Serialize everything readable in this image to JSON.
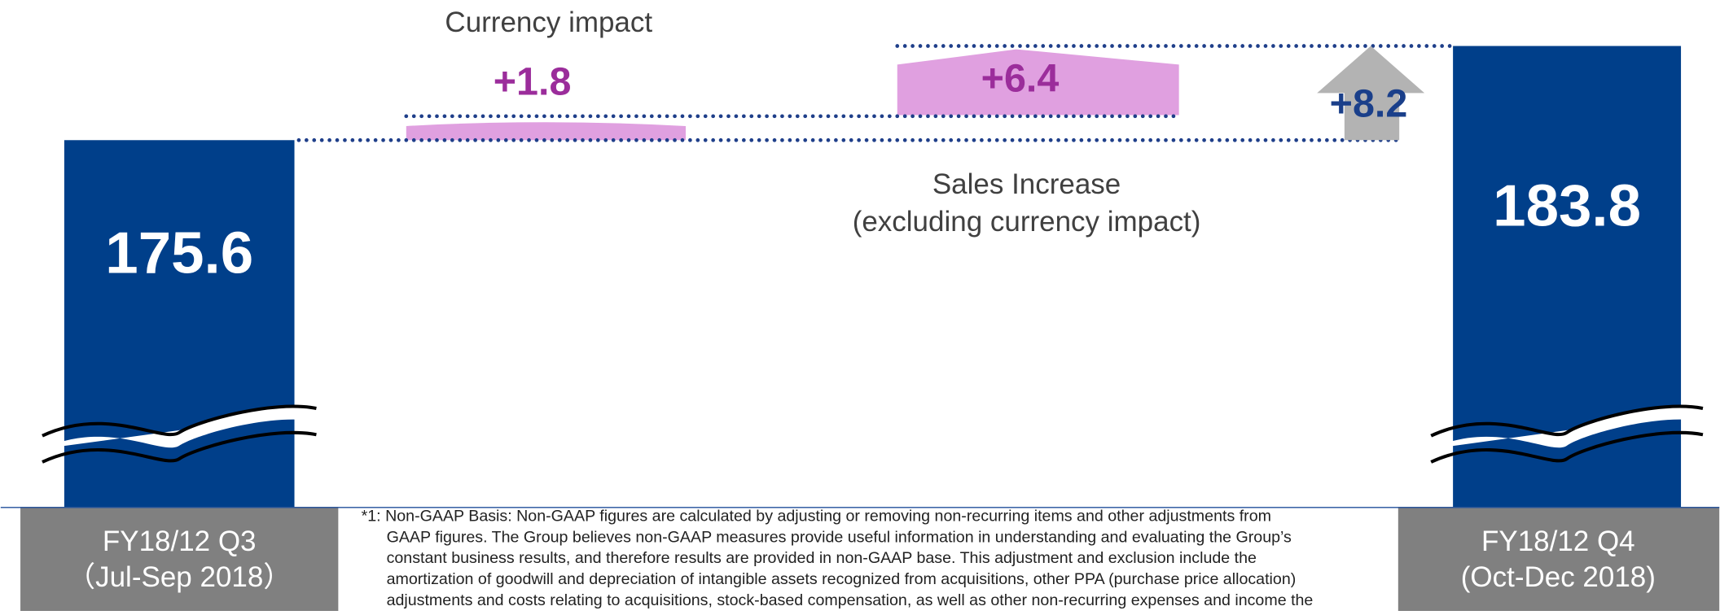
{
  "chart_data": {
    "type": "waterfall",
    "start": {
      "label": [
        "FY18/12 Q3",
        "（Jul-Sep 2018）"
      ],
      "value": 175.6,
      "color": "#003f8a"
    },
    "end": {
      "label": [
        "FY18/12 Q4",
        "(Oct-Dec 2018)"
      ],
      "value": 183.8,
      "color": "#003f8a"
    },
    "steps": [
      {
        "name": [
          "Currency impact"
        ],
        "value": 1.8,
        "value_label": "+1.8",
        "color": "#e0a0e0"
      },
      {
        "name": [
          "Sales Increase",
          "(excluding currency impact)"
        ],
        "value": 6.4,
        "value_label": "+6.4",
        "color": "#e0a0e0"
      }
    ],
    "total_change": {
      "value": 8.2,
      "value_label": "+8.2",
      "color": "#b3b3b3"
    },
    "footnote": [
      "*1: Non-GAAP Basis: Non-GAAP figures are calculated by adjusting or removing non-recurring items and other adjustments from",
      "GAAP figures. The Group believes non-GAAP measures provide useful information in understanding and evaluating the Group’s",
      "constant business results, and therefore results are provided in non-GAAP base. This adjustment and exclusion include the",
      "amortization of goodwill and depreciation of intangible assets recognized from acquisitions, other PPA (purchase price allocation)",
      "adjustments and costs relating to acquisitions, stock-based compensation, as well as other non-recurring expenses and income the"
    ]
  }
}
